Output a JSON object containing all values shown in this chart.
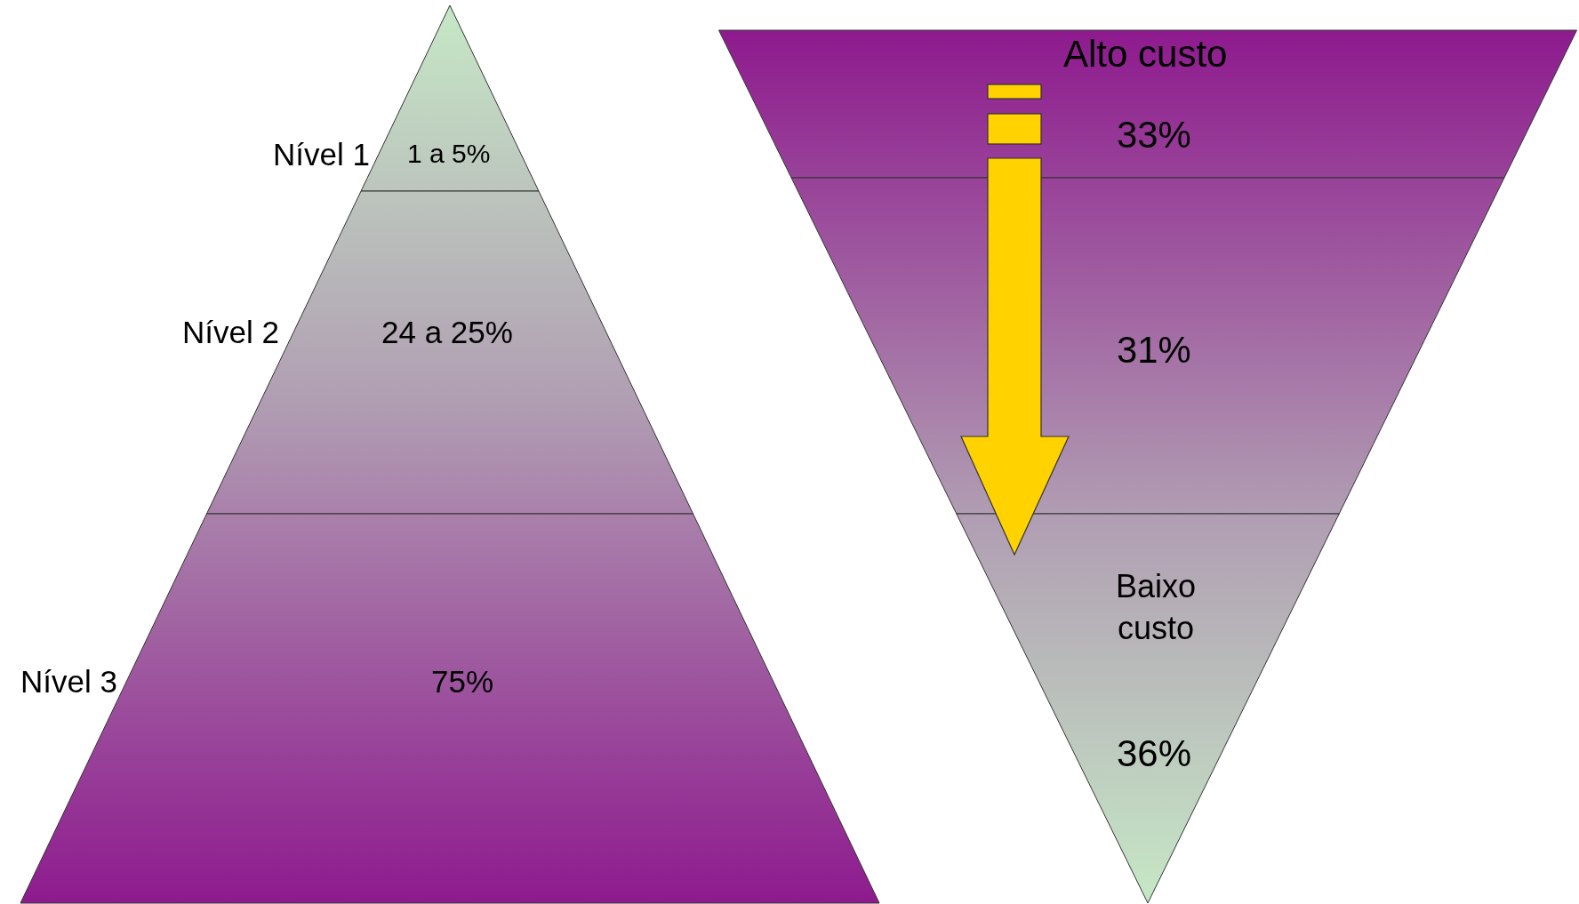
{
  "chart_data": [
    {
      "type": "other",
      "categories": [
        "Nível 1",
        "Nível 2",
        "Nível 3"
      ],
      "values": [
        null,
        null,
        75
      ],
      "value_labels": [
        "1 a 5%",
        "24 a 25%",
        "75%"
      ]
    },
    {
      "type": "other",
      "categories": [
        null,
        null,
        null
      ],
      "values": [
        33,
        31,
        36
      ],
      "value_labels": [
        "33%",
        "31%",
        "36%"
      ],
      "annotations": [
        "Alto custo",
        "Baixo custo"
      ]
    }
  ]
}
